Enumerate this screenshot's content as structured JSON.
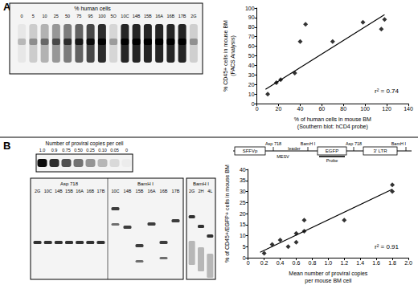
{
  "panel_labels": [
    "A",
    "B"
  ],
  "chart_data": [
    {
      "type": "scatter",
      "xlabel": [
        "% of human cells in mouse BM",
        "(Southern blot: hCD4 probe)"
      ],
      "ylabel": [
        "% CD45+ cells in mouse BM",
        "(FACS Analysis)"
      ],
      "x": [
        10,
        18,
        22,
        35,
        40,
        45,
        70,
        98,
        115,
        118
      ],
      "values": [
        10,
        22,
        25,
        32,
        65,
        83,
        65,
        85,
        78,
        88
      ],
      "trend_line": {
        "x": [
          8,
          118
        ],
        "y": [
          15,
          93
        ]
      },
      "annotation": "r² = 0.74",
      "xlim": [
        0,
        140
      ],
      "xticks": [
        0,
        20,
        40,
        60,
        80,
        100,
        120,
        140
      ],
      "ylim": [
        0,
        100
      ],
      "yticks": [
        0,
        10,
        20,
        30,
        40,
        50,
        60,
        70,
        80,
        90,
        100
      ],
      "marker": "diamond",
      "color": "#000000",
      "grid": false
    },
    {
      "type": "scatter",
      "xlabel": [
        "Mean number of proviral copies",
        "per mouse BM cell"
      ],
      "ylabel": [
        "% of CD45+/EGFP+ cells in mouse BM"
      ],
      "x": [
        0.2,
        0.3,
        0.4,
        0.5,
        0.6,
        0.6,
        0.7,
        0.7,
        1.2,
        1.8,
        1.8
      ],
      "values": [
        2,
        6,
        8,
        5,
        7,
        11,
        12,
        17,
        17,
        30,
        33
      ],
      "trend_line": {
        "x": [
          0.15,
          1.8
        ],
        "y": [
          2.5,
          31
        ]
      },
      "annotation": "r² = 0.91",
      "xlim": [
        0,
        2
      ],
      "xticks": [
        0,
        0.2,
        0.4,
        0.6,
        0.8,
        {
          "value": 1,
          "label": "1.0"
        },
        1.2,
        1.4,
        1.6,
        1.8,
        {
          "value": 2,
          "label": "2.0"
        }
      ],
      "ylim": [
        0,
        40
      ],
      "yticks": [
        0,
        5,
        10,
        15,
        20,
        25,
        30,
        35,
        40
      ],
      "marker": "diamond",
      "color": "#000000",
      "grid": false
    }
  ],
  "blot_A": {
    "title": "% human cells",
    "lanes": [
      "0",
      "5",
      "10",
      "25",
      "50",
      "75",
      "95",
      "100",
      "5O",
      "10C",
      "14B",
      "15B",
      "16A",
      "16B",
      "17B",
      "2G"
    ]
  },
  "blot_B_standard": {
    "title": "Number of proviral copies per cell",
    "lanes": [
      "1.0",
      "0.9",
      "0.75",
      "0.50",
      "0.25",
      "0.10",
      "0.05",
      "0"
    ]
  },
  "blot_B_digest": {
    "groups": [
      {
        "enzyme": "Asp 718",
        "lanes": [
          "2G",
          "10C",
          "14B",
          "15B",
          "16A",
          "16B",
          "17B"
        ]
      },
      {
        "enzyme": "BamH I",
        "lanes": [
          "10C",
          "14B",
          "15B",
          "16A",
          "16B",
          "17B"
        ]
      }
    ]
  },
  "blot_B_extra": {
    "enzyme": "BamH I",
    "lanes": [
      "2G",
      "2H",
      "4L"
    ]
  },
  "vector_map": {
    "boxes": [
      "SFFVp",
      "EGFP",
      "3' LTR"
    ],
    "sites": [
      "Asp 718",
      "BamH I",
      "Asp 718",
      "BamH I"
    ],
    "regions": [
      "MESV",
      "leader"
    ],
    "probe": "Probe"
  }
}
